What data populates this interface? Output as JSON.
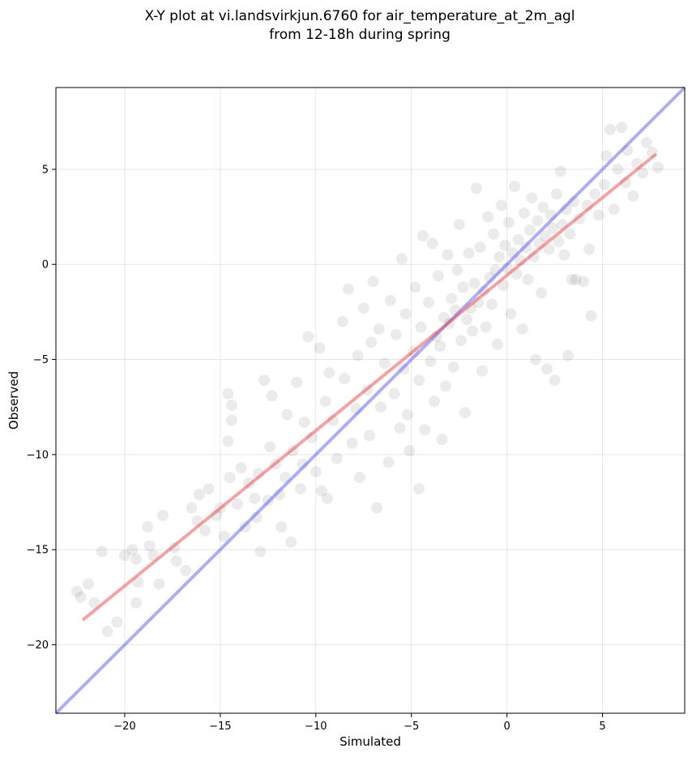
{
  "chart_data": {
    "type": "scatter",
    "title": "X-Y plot at vi.landsvirkjun.6760 for air_temperature_at_2m_agl",
    "subtitle": "from 12-18h during spring",
    "xlabel": "Simulated",
    "ylabel": "Observed",
    "xlim": [
      -23.6,
      9.3
    ],
    "ylim": [
      -23.6,
      9.3
    ],
    "xticks": [
      -20,
      -15,
      -10,
      -5,
      0,
      5
    ],
    "yticks": [
      -20,
      -15,
      -10,
      -5,
      0,
      5
    ],
    "xtick_labels": [
      "−20",
      "−15",
      "−10",
      "−5",
      "0",
      "5"
    ],
    "ytick_labels": [
      "−20",
      "−15",
      "−10",
      "−5",
      "0",
      "5"
    ],
    "grid": true,
    "point_color": "#000000",
    "point_opacity": 0.08,
    "fit_line": {
      "color": "#e8474a",
      "x": [
        -22.2,
        7.8
      ],
      "y": [
        -18.7,
        5.8
      ]
    },
    "identity_line": {
      "color": "#4a4af0",
      "x": [
        -23.6,
        9.3
      ],
      "y": [
        -23.6,
        9.3
      ]
    },
    "series": [
      {
        "values": [
          [
            -22.5,
            -17.2
          ],
          [
            -22.3,
            -17.5
          ],
          [
            -21.9,
            -16.8
          ],
          [
            -21.6,
            -17.8
          ],
          [
            -21.2,
            -15.1
          ],
          [
            -20.4,
            -18.8
          ],
          [
            -20.9,
            -19.3
          ],
          [
            -20.0,
            -15.3
          ],
          [
            -19.6,
            -15.0
          ],
          [
            -19.4,
            -15.5
          ],
          [
            -19.3,
            -16.7
          ],
          [
            -19.4,
            -17.8
          ],
          [
            -18.8,
            -13.8
          ],
          [
            -18.7,
            -14.8
          ],
          [
            -18.5,
            -15.3
          ],
          [
            -18.2,
            -16.8
          ],
          [
            -18.0,
            -13.2
          ],
          [
            -17.4,
            -14.9
          ],
          [
            -17.3,
            -15.6
          ],
          [
            -16.8,
            -16.1
          ],
          [
            -16.5,
            -12.8
          ],
          [
            -16.2,
            -13.5
          ],
          [
            -16.1,
            -12.1
          ],
          [
            -15.8,
            -14.0
          ],
          [
            -15.6,
            -11.8
          ],
          [
            -15.2,
            -13.2
          ],
          [
            -15.0,
            -12.8
          ],
          [
            -14.8,
            -14.3
          ],
          [
            -14.5,
            -11.2
          ],
          [
            -14.6,
            -9.3
          ],
          [
            -14.4,
            -8.2
          ],
          [
            -14.4,
            -7.4
          ],
          [
            -14.6,
            -6.8
          ],
          [
            -14.1,
            -12.6
          ],
          [
            -13.9,
            -10.7
          ],
          [
            -13.7,
            -13.8
          ],
          [
            -13.5,
            -11.5
          ],
          [
            -13.2,
            -12.3
          ],
          [
            -13.0,
            -11.0
          ],
          [
            -13.1,
            -13.3
          ],
          [
            -12.9,
            -15.1
          ],
          [
            -12.7,
            -6.1
          ],
          [
            -12.4,
            -9.6
          ],
          [
            -12.5,
            -12.4
          ],
          [
            -12.3,
            -6.9
          ],
          [
            -12.1,
            -10.5
          ],
          [
            -11.9,
            -12.1
          ],
          [
            -11.8,
            -13.8
          ],
          [
            -11.6,
            -11.2
          ],
          [
            -11.5,
            -7.9
          ],
          [
            -11.2,
            -9.8
          ],
          [
            -11.3,
            -14.6
          ],
          [
            -11.0,
            -6.2
          ],
          [
            -10.8,
            -11.8
          ],
          [
            -10.7,
            -10.5
          ],
          [
            -10.6,
            -8.3
          ],
          [
            -10.4,
            -3.8
          ],
          [
            -10.2,
            -9.1
          ],
          [
            -10.0,
            -10.9
          ],
          [
            -9.8,
            -4.4
          ],
          [
            -9.7,
            -11.9
          ],
          [
            -9.5,
            -7.2
          ],
          [
            -9.4,
            -12.3
          ],
          [
            -9.3,
            -5.7
          ],
          [
            -9.1,
            -8.2
          ],
          [
            -8.9,
            -10.2
          ],
          [
            -8.6,
            -3.0
          ],
          [
            -8.5,
            -6.0
          ],
          [
            -8.3,
            -1.3
          ],
          [
            -8.1,
            -9.4
          ],
          [
            -7.9,
            -7.6
          ],
          [
            -7.8,
            -4.8
          ],
          [
            -7.7,
            -11.2
          ],
          [
            -7.5,
            -2.3
          ],
          [
            -7.3,
            -6.6
          ],
          [
            -7.2,
            -9.0
          ],
          [
            -7.1,
            -4.1
          ],
          [
            -7.0,
            -0.9
          ],
          [
            -6.8,
            -12.8
          ],
          [
            -6.7,
            -3.4
          ],
          [
            -6.6,
            -7.5
          ],
          [
            -6.4,
            -5.2
          ],
          [
            -6.2,
            -10.4
          ],
          [
            -6.1,
            -1.9
          ],
          [
            -5.9,
            -6.8
          ],
          [
            -5.8,
            -3.7
          ],
          [
            -5.6,
            -8.6
          ],
          [
            -5.5,
            0.3
          ],
          [
            -5.4,
            -5.5
          ],
          [
            -5.3,
            -2.6
          ],
          [
            -5.2,
            -7.9
          ],
          [
            -5.1,
            -9.8
          ],
          [
            -4.9,
            -4.6
          ],
          [
            -4.8,
            -1.2
          ],
          [
            -4.6,
            -6.1
          ],
          [
            -4.6,
            -11.8
          ],
          [
            -4.5,
            -3.3
          ],
          [
            -4.4,
            1.5
          ],
          [
            -4.3,
            -8.7
          ],
          [
            -4.1,
            -2.0
          ],
          [
            -4.0,
            -5.1
          ],
          [
            -3.9,
            1.1
          ],
          [
            -3.8,
            -7.2
          ],
          [
            -3.7,
            -3.8
          ],
          [
            -3.6,
            -0.6
          ],
          [
            -3.5,
            -4.3
          ],
          [
            -3.4,
            -9.2
          ],
          [
            -3.3,
            -2.8
          ],
          [
            -3.2,
            -6.4
          ],
          [
            -3.1,
            0.5
          ],
          [
            -3.0,
            -3.1
          ],
          [
            -2.9,
            -1.8
          ],
          [
            -2.8,
            -5.4
          ],
          [
            -2.7,
            -2.4
          ],
          [
            -2.6,
            -0.3
          ],
          [
            -2.5,
            2.1
          ],
          [
            -2.4,
            -4.0
          ],
          [
            -2.3,
            -1.2
          ],
          [
            -2.2,
            -7.8
          ],
          [
            -2.1,
            -2.9
          ],
          [
            -2.0,
            0.6
          ],
          [
            -1.9,
            -2.3
          ],
          [
            -1.8,
            -3.5
          ],
          [
            -1.7,
            -1.0
          ],
          [
            -1.6,
            4.0
          ],
          [
            -1.5,
            -2.0
          ],
          [
            -1.4,
            0.9
          ],
          [
            -1.3,
            -5.6
          ],
          [
            -1.2,
            -1.4
          ],
          [
            -1.1,
            -3.3
          ],
          [
            -1.0,
            2.5
          ],
          [
            -0.9,
            -0.7
          ],
          [
            -0.8,
            -2.1
          ],
          [
            -0.7,
            1.6
          ],
          [
            -0.6,
            -0.3
          ],
          [
            -0.5,
            -4.2
          ],
          [
            -0.4,
            0.4
          ],
          [
            -0.3,
            3.1
          ],
          [
            -0.2,
            -1.1
          ],
          [
            -0.1,
            1.0
          ],
          [
            0.0,
            -0.2
          ],
          [
            0.1,
            2.2
          ],
          [
            0.2,
            -2.6
          ],
          [
            0.3,
            0.6
          ],
          [
            0.4,
            4.1
          ],
          [
            0.5,
            -0.5
          ],
          [
            0.6,
            1.3
          ],
          [
            0.7,
            0.2
          ],
          [
            0.8,
            -3.4
          ],
          [
            0.9,
            2.7
          ],
          [
            1.0,
            0.9
          ],
          [
            1.1,
            -0.8
          ],
          [
            1.2,
            1.8
          ],
          [
            1.3,
            3.5
          ],
          [
            1.4,
            0.4
          ],
          [
            1.5,
            -5.0
          ],
          [
            1.6,
            2.3
          ],
          [
            1.7,
            1.1
          ],
          [
            1.8,
            -1.5
          ],
          [
            1.9,
            3.0
          ],
          [
            2.0,
            1.5
          ],
          [
            2.1,
            -5.5
          ],
          [
            2.2,
            0.8
          ],
          [
            2.3,
            2.6
          ],
          [
            2.4,
            1.9
          ],
          [
            2.5,
            -6.1
          ],
          [
            2.6,
            3.7
          ],
          [
            2.7,
            1.2
          ],
          [
            2.8,
            4.9
          ],
          [
            2.9,
            2.1
          ],
          [
            3.0,
            0.5
          ],
          [
            3.1,
            2.9
          ],
          [
            3.2,
            -4.8
          ],
          [
            3.3,
            1.6
          ],
          [
            3.4,
            -0.8
          ],
          [
            3.5,
            3.3
          ],
          [
            3.6,
            -0.8
          ],
          [
            3.8,
            2.4
          ],
          [
            4.0,
            -0.9
          ],
          [
            4.2,
            3.1
          ],
          [
            4.3,
            0.8
          ],
          [
            4.4,
            -2.7
          ],
          [
            4.6,
            3.7
          ],
          [
            4.8,
            2.6
          ],
          [
            5.1,
            4.2
          ],
          [
            5.2,
            5.7
          ],
          [
            5.4,
            7.1
          ],
          [
            5.6,
            2.9
          ],
          [
            5.8,
            5.0
          ],
          [
            6.0,
            7.2
          ],
          [
            6.2,
            4.3
          ],
          [
            6.3,
            6.0
          ],
          [
            6.6,
            3.6
          ],
          [
            6.8,
            5.3
          ],
          [
            7.1,
            4.8
          ],
          [
            7.3,
            6.4
          ],
          [
            7.6,
            5.9
          ],
          [
            7.9,
            5.1
          ]
        ]
      }
    ]
  }
}
